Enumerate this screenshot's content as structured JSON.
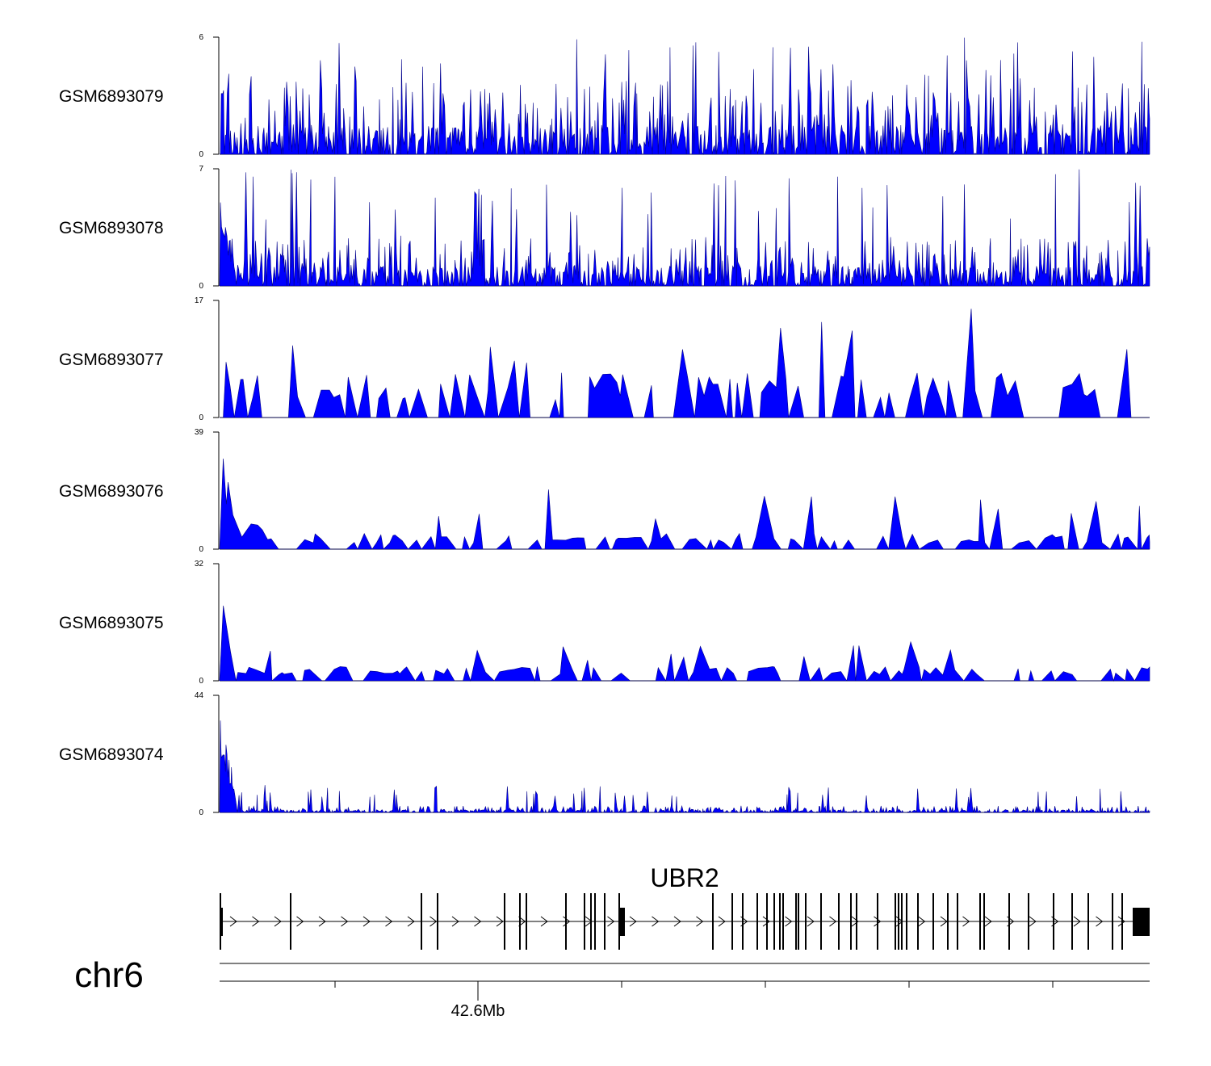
{
  "chart_data": {
    "type": "area",
    "description_kind": "genome-browser-coverage-tracks",
    "chromosome": "chr6",
    "gene": {
      "name": "UBR2",
      "strand": "+",
      "exon_count": 47
    },
    "position_label": "42.6Mb",
    "series": [
      {
        "name": "GSM6893079",
        "ymax": 6,
        "ymin": 0,
        "color": "#0000ff",
        "baseline": 1.5,
        "peak_level": 6,
        "seed": 11,
        "early_enrichment": 0,
        "style": "dense"
      },
      {
        "name": "GSM6893078",
        "ymax": 7,
        "ymin": 0,
        "color": "#0000ff",
        "baseline": 1.2,
        "peak_level": 7,
        "seed": 23,
        "early_enrichment": 7,
        "style": "dense"
      },
      {
        "name": "GSM6893077",
        "ymax": 17,
        "ymin": 0,
        "color": "#0000ff",
        "baseline": 5,
        "peak_level": 17,
        "seed": 37,
        "early_enrichment": 0,
        "style": "sparse"
      },
      {
        "name": "GSM6893076",
        "ymax": 39,
        "ymin": 0,
        "color": "#0000ff",
        "baseline": 4,
        "peak_level": 20,
        "seed": 41,
        "early_enrichment": 39,
        "style": "sparse"
      },
      {
        "name": "GSM6893075",
        "ymax": 32,
        "ymin": 0,
        "color": "#0000ff",
        "baseline": 3,
        "peak_level": 11,
        "seed": 53,
        "early_enrichment": 32,
        "style": "sparse"
      },
      {
        "name": "GSM6893074",
        "ymax": 44,
        "ymin": 0,
        "color": "#0000ff",
        "baseline": 1,
        "peak_level": 10,
        "seed": 67,
        "early_enrichment": 44,
        "style": "dense"
      }
    ]
  }
}
